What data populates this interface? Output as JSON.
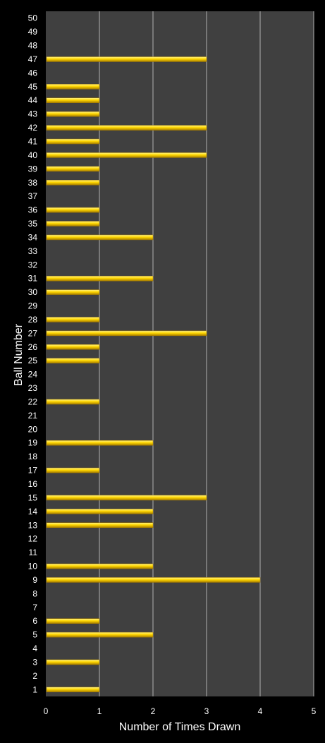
{
  "chart_data": {
    "type": "bar",
    "orientation": "horizontal",
    "title": "",
    "xlabel": "Number of Times Drawn",
    "ylabel": "Ball Number",
    "xlim": [
      0,
      5
    ],
    "xticks": [
      "0",
      "1",
      "2",
      "3",
      "4",
      "5"
    ],
    "categories": [
      "1",
      "2",
      "3",
      "4",
      "5",
      "6",
      "7",
      "8",
      "9",
      "10",
      "11",
      "12",
      "13",
      "14",
      "15",
      "16",
      "17",
      "18",
      "19",
      "20",
      "21",
      "22",
      "23",
      "24",
      "25",
      "26",
      "27",
      "28",
      "29",
      "30",
      "31",
      "32",
      "33",
      "34",
      "35",
      "36",
      "37",
      "38",
      "39",
      "40",
      "41",
      "42",
      "43",
      "44",
      "45",
      "46",
      "47",
      "48",
      "49",
      "50"
    ],
    "values": [
      1,
      0,
      1,
      0,
      2,
      1,
      0,
      0,
      4,
      2,
      0,
      0,
      2,
      2,
      3,
      0,
      1,
      0,
      2,
      0,
      0,
      1,
      0,
      0,
      1,
      1,
      3,
      1,
      0,
      1,
      2,
      0,
      0,
      2,
      1,
      1,
      0,
      1,
      1,
      3,
      1,
      3,
      1,
      1,
      1,
      0,
      3,
      0,
      0,
      0
    ],
    "grid": "vertical",
    "legend": "none",
    "colors": {
      "background": "#000000",
      "plot_area": "#404040",
      "bar": "#FFD700",
      "bar_highlight": "#FFF48A",
      "bar_shadow": "#A67C00",
      "gridline": "#B0B0B0",
      "text": "#FFFFFF"
    }
  }
}
